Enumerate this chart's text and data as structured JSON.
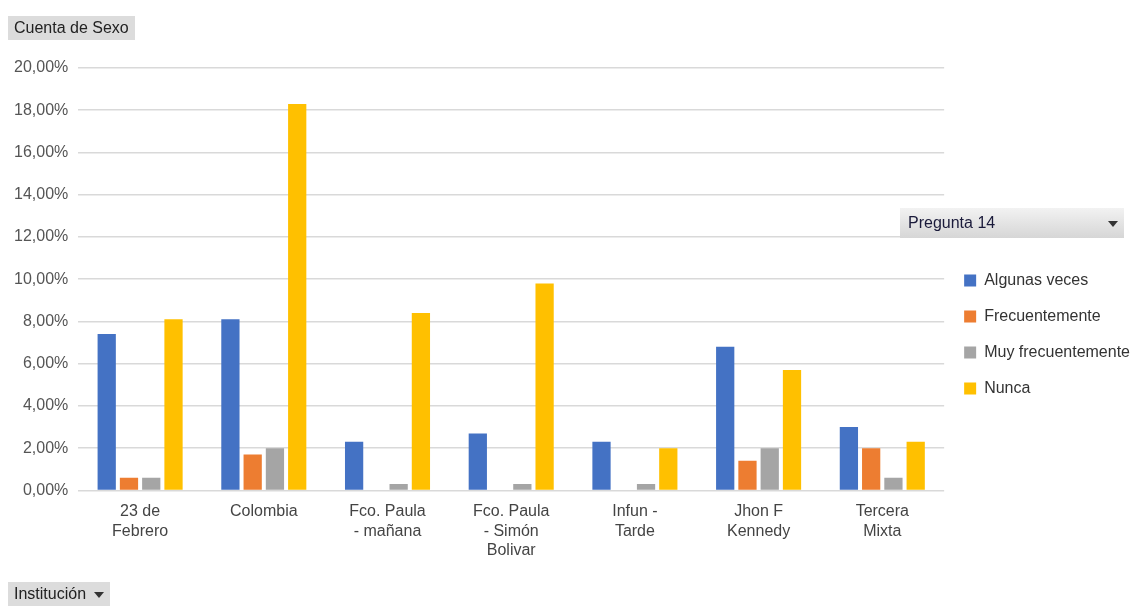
{
  "chart_data": {
    "type": "bar",
    "title": "Cuenta de Sexo",
    "xlabel": "Institución",
    "legend_title": "Pregunta 14",
    "categories": [
      "23 de Febrero",
      "Colombia",
      "Fco. Paula - mañana",
      "Fco. Paula - Simón Bolivar",
      "Infun - Tarde",
      "Jhon F Kennedy",
      "Tercera Mixta"
    ],
    "series": [
      {
        "name": "Algunas veces",
        "color": "#4472c4",
        "values": [
          7.4,
          8.1,
          2.3,
          2.7,
          2.3,
          6.8,
          3.0
        ]
      },
      {
        "name": "Frecuentemente",
        "color": "#ed7d31",
        "values": [
          0.6,
          1.7,
          null,
          null,
          null,
          1.4,
          2.0
        ]
      },
      {
        "name": "Muy frecuentemente",
        "color": "#a5a5a5",
        "values": [
          0.6,
          2.0,
          0.3,
          0.3,
          0.3,
          2.0,
          0.6
        ]
      },
      {
        "name": "Nunca",
        "color": "#ffc000",
        "values": [
          8.1,
          18.3,
          8.4,
          9.8,
          2.0,
          5.7,
          2.3
        ]
      }
    ],
    "ylim": [
      0,
      20
    ],
    "yticks": [
      {
        "value": 0,
        "label": "0,00%"
      },
      {
        "value": 2,
        "label": "2,00%"
      },
      {
        "value": 4,
        "label": "4,00%"
      },
      {
        "value": 6,
        "label": "6,00%"
      },
      {
        "value": 8,
        "label": "8,00%"
      },
      {
        "value": 10,
        "label": "10,00%"
      },
      {
        "value": 12,
        "label": "12,00%"
      },
      {
        "value": 14,
        "label": "14,00%"
      },
      {
        "value": 16,
        "label": "16,00%"
      },
      {
        "value": 18,
        "label": "18,00%"
      },
      {
        "value": 20,
        "label": "20,00%"
      }
    ],
    "grid": "y",
    "legend": "right"
  }
}
